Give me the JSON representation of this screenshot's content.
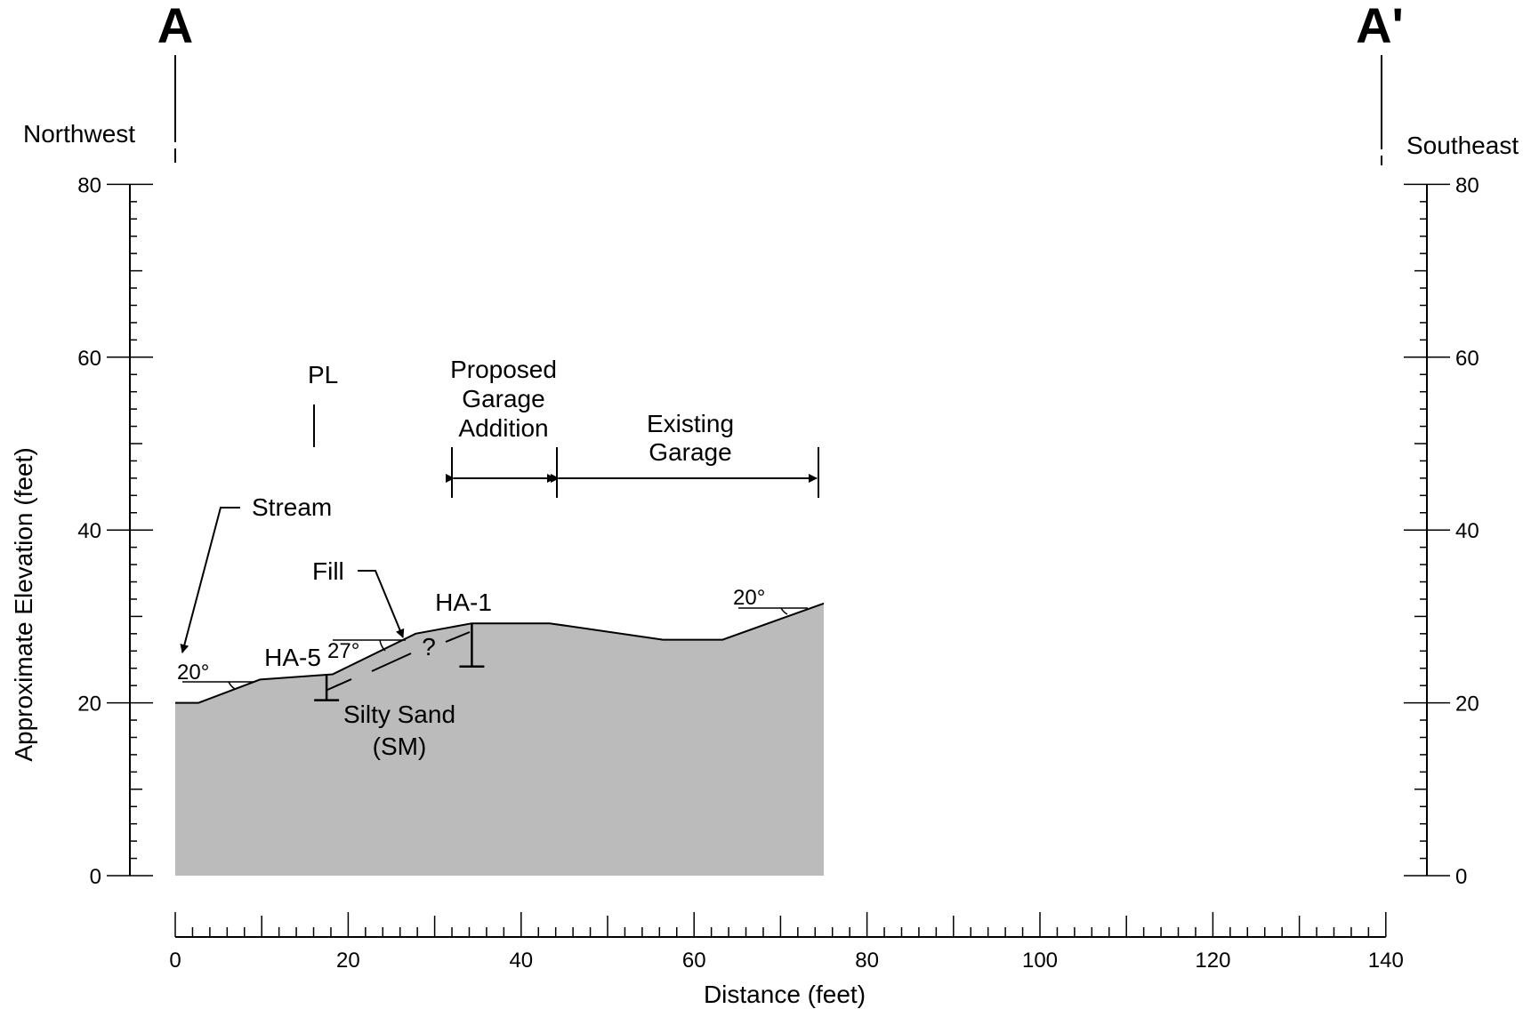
{
  "section": {
    "start_label": "A",
    "end_label": "A'",
    "start_direction": "Northwest",
    "end_direction": "Southeast"
  },
  "axes": {
    "x_title": "Distance (feet)",
    "y_title": "Approximate Elevation (feet)",
    "x_ticks": [
      0,
      20,
      40,
      60,
      80,
      100,
      120,
      140
    ],
    "y_ticks": [
      0,
      20,
      40,
      60,
      80
    ],
    "x_range": [
      0,
      140
    ],
    "y_range": [
      0,
      80
    ],
    "x_minor_step": 2,
    "y_minor_step": 2
  },
  "ground_profile": [
    [
      0,
      20
    ],
    [
      2.7,
      20
    ],
    [
      9.8,
      22.7
    ],
    [
      18.2,
      23.3
    ],
    [
      27.8,
      28
    ],
    [
      34.3,
      29.2
    ],
    [
      43.3,
      29.2
    ],
    [
      56.4,
      27.3
    ],
    [
      63.3,
      27.3
    ],
    [
      75,
      31.5
    ]
  ],
  "ground_fill_color": "#bbbbbb",
  "labels": {
    "property_line": "PL",
    "stream": "Stream",
    "fill": "Fill",
    "soil_line1": "Silty Sand",
    "soil_line2": "(SM)",
    "contact_query": "?",
    "proposed_line1": "Proposed",
    "proposed_line2": "Garage",
    "proposed_line3": "Addition",
    "existing_line1": "Existing",
    "existing_line2": "Garage"
  },
  "borings": [
    {
      "name": "HA-5",
      "x": 17.5,
      "top": 23.3,
      "bottom": 20.3
    },
    {
      "name": "HA-1",
      "x": 34.3,
      "top": 29.2,
      "bottom": 24.2
    }
  ],
  "slopes": [
    {
      "label": "20°"
    },
    {
      "label": "27°"
    },
    {
      "label": "20°"
    }
  ],
  "extents": {
    "proposed": [
      32.3,
      44.5
    ],
    "existing": [
      44.5,
      74.8
    ]
  }
}
